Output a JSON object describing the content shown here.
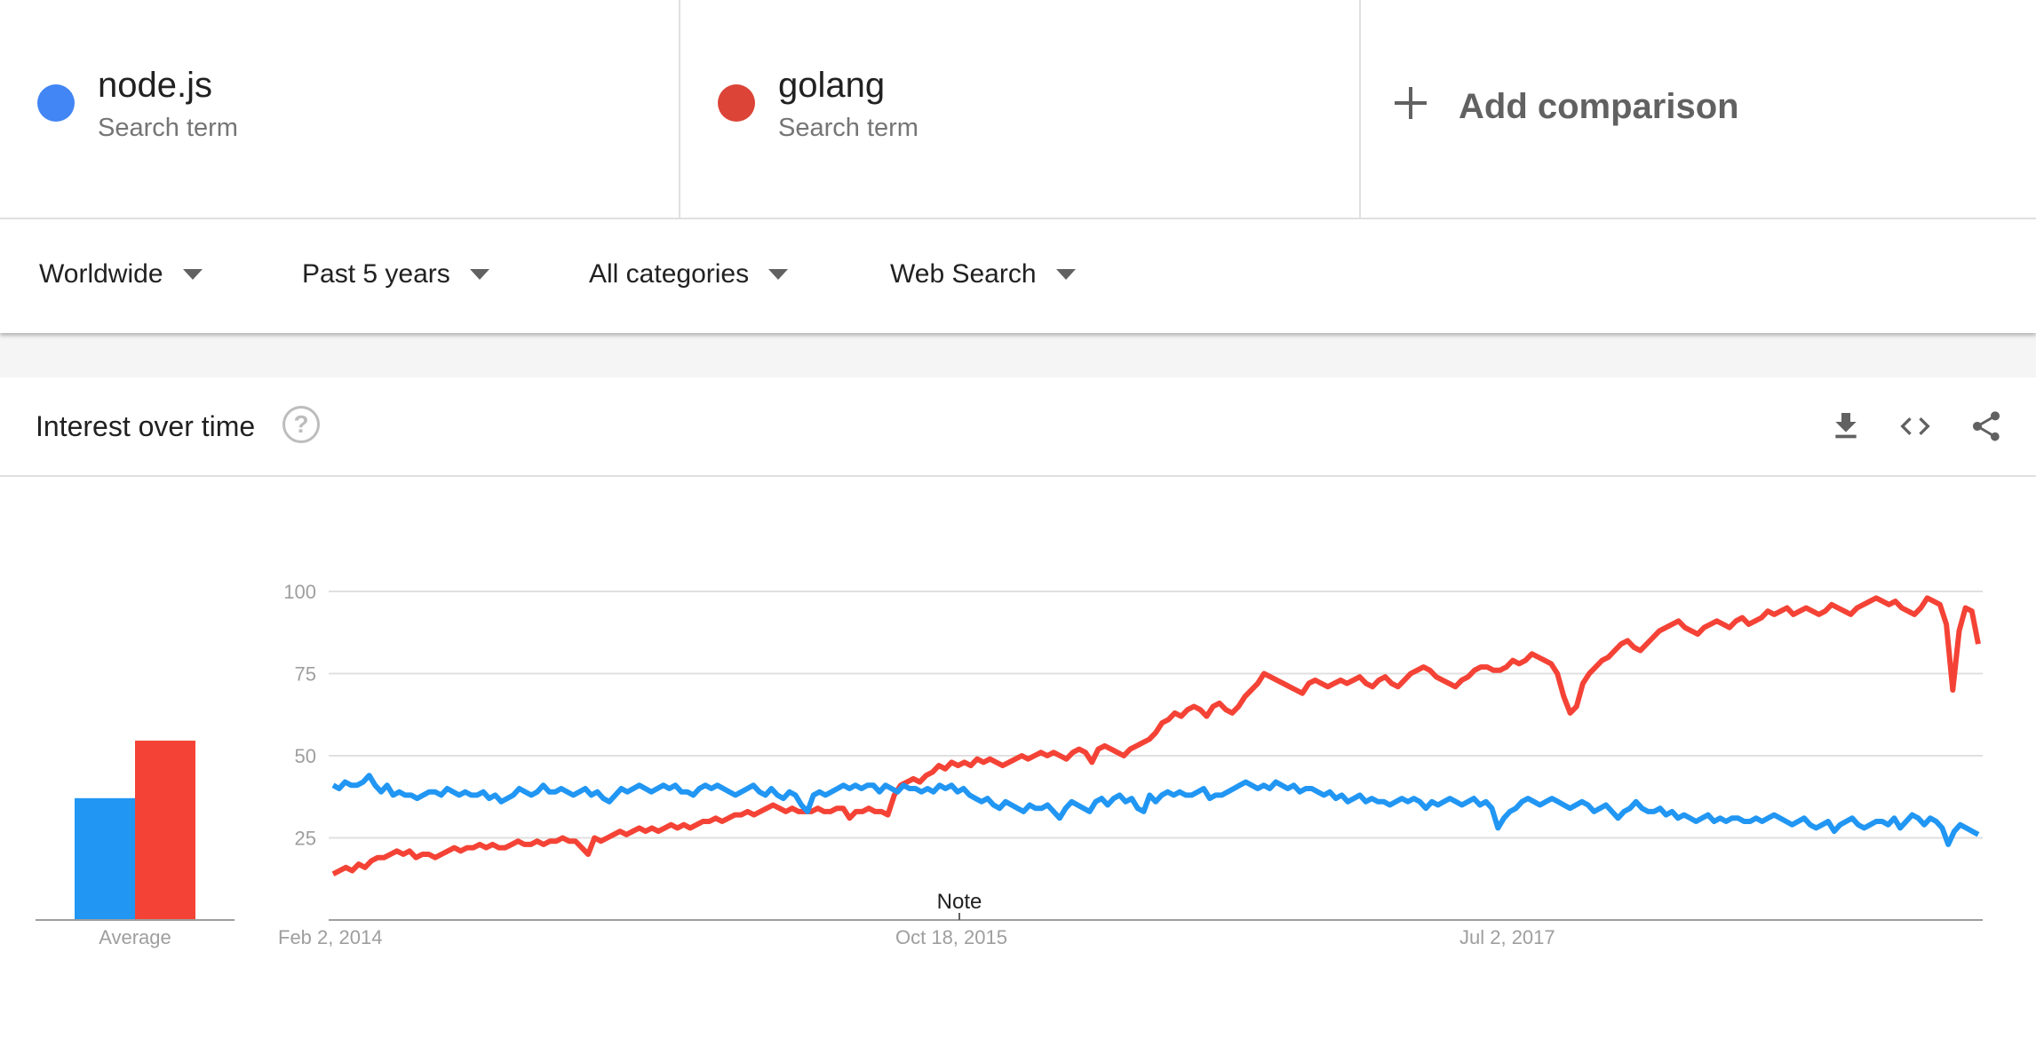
{
  "terms": [
    {
      "name": "node.js",
      "sub": "Search term",
      "color": "#4285f4"
    },
    {
      "name": "golang",
      "sub": "Search term",
      "color": "#db4437"
    }
  ],
  "add_comparison": "Add comparison",
  "filters": {
    "region": "Worldwide",
    "time": "Past 5 years",
    "category": "All categories",
    "search_type": "Web Search"
  },
  "card": {
    "title": "Interest over time",
    "icons": [
      "help-icon",
      "download-icon",
      "embed-icon",
      "share-icon"
    ]
  },
  "chart_data": {
    "type": "line",
    "y_ticks": [
      25,
      50,
      75,
      100
    ],
    "ylim": [
      0,
      100
    ],
    "x_labels": [
      "Feb 2, 2014",
      "Oct 18, 2015",
      "Jul 2, 2017"
    ],
    "note_label": "Note",
    "grid": true,
    "average_label": "Average",
    "averages": [
      {
        "series": "node.js",
        "value": 36,
        "color": "#2196f3"
      },
      {
        "series": "golang",
        "value": 53,
        "color": "#f44336"
      }
    ],
    "series": [
      {
        "name": "node.js",
        "color": "#2196f3",
        "values": [
          41,
          40,
          42,
          41,
          41,
          42,
          44,
          41,
          39,
          41,
          38,
          39,
          38,
          38,
          37,
          38,
          39,
          39,
          38,
          40,
          39,
          38,
          39,
          38,
          38,
          39,
          37,
          38,
          36,
          37,
          38,
          40,
          39,
          38,
          39,
          41,
          39,
          39,
          40,
          39,
          38,
          39,
          40,
          38,
          39,
          37,
          36,
          38,
          40,
          39,
          40,
          41,
          40,
          39,
          40,
          41,
          40,
          41,
          39,
          39,
          38,
          40,
          41,
          40,
          41,
          40,
          39,
          38,
          39,
          40,
          41,
          39,
          38,
          40,
          38,
          37,
          39,
          38,
          35,
          33,
          38,
          39,
          38,
          39,
          40,
          41,
          40,
          41,
          40,
          41,
          41,
          39,
          41,
          40,
          39,
          41,
          40,
          40,
          39,
          40,
          39,
          41,
          40,
          41,
          39,
          40,
          38,
          37,
          36,
          37,
          35,
          34,
          36,
          35,
          34,
          33,
          35,
          34,
          34,
          35,
          33,
          31,
          34,
          36,
          35,
          34,
          33,
          36,
          37,
          35,
          37,
          38,
          36,
          37,
          34,
          33,
          38,
          36,
          38,
          39,
          38,
          39,
          38,
          38,
          39,
          40,
          37,
          38,
          38,
          39,
          40,
          41,
          42,
          41,
          40,
          41,
          40,
          42,
          41,
          40,
          41,
          39,
          40,
          40,
          39,
          38,
          39,
          37,
          38,
          36,
          37,
          38,
          36,
          37,
          36,
          36,
          35,
          36,
          37,
          36,
          37,
          36,
          34,
          36,
          35,
          36,
          37,
          36,
          35,
          36,
          37,
          35,
          36,
          34,
          28,
          31,
          33,
          34,
          36,
          37,
          36,
          35,
          36,
          37,
          36,
          35,
          34,
          35,
          36,
          35,
          33,
          34,
          35,
          33,
          31,
          33,
          34,
          36,
          34,
          33,
          33,
          34,
          32,
          33,
          31,
          32,
          31,
          30,
          31,
          32,
          30,
          31,
          30,
          31,
          31,
          30,
          30,
          31,
          30,
          31,
          32,
          31,
          30,
          29,
          30,
          31,
          29,
          28,
          29,
          30,
          27,
          29,
          30,
          31,
          29,
          28,
          29,
          30,
          30,
          29,
          31,
          28,
          30,
          32,
          31,
          29,
          31,
          30,
          28,
          23,
          27,
          29,
          28,
          27,
          26
        ]
      },
      {
        "name": "golang",
        "color": "#f44336",
        "values": [
          14,
          15,
          16,
          15,
          17,
          16,
          18,
          19,
          19,
          20,
          21,
          20,
          21,
          19,
          20,
          20,
          19,
          20,
          21,
          22,
          21,
          22,
          22,
          23,
          22,
          23,
          22,
          22,
          23,
          24,
          23,
          23,
          24,
          23,
          24,
          24,
          25,
          24,
          24,
          22,
          20,
          25,
          24,
          25,
          26,
          27,
          26,
          27,
          28,
          27,
          28,
          27,
          28,
          29,
          28,
          29,
          28,
          29,
          30,
          30,
          31,
          30,
          31,
          32,
          32,
          33,
          32,
          33,
          34,
          35,
          34,
          33,
          34,
          33,
          33,
          33,
          34,
          33,
          33,
          34,
          34,
          31,
          33,
          33,
          34,
          33,
          33,
          32,
          38,
          41,
          42,
          43,
          42,
          44,
          45,
          47,
          46,
          48,
          47,
          48,
          47,
          49,
          48,
          49,
          48,
          47,
          48,
          49,
          50,
          49,
          50,
          51,
          50,
          51,
          50,
          49,
          51,
          52,
          51,
          48,
          52,
          53,
          52,
          51,
          50,
          52,
          53,
          54,
          55,
          57,
          60,
          61,
          63,
          62,
          64,
          65,
          64,
          62,
          65,
          66,
          64,
          63,
          65,
          68,
          70,
          72,
          75,
          74,
          73,
          72,
          71,
          70,
          69,
          72,
          73,
          72,
          71,
          72,
          73,
          72,
          73,
          74,
          72,
          71,
          73,
          74,
          72,
          71,
          73,
          75,
          76,
          77,
          76,
          74,
          73,
          72,
          71,
          73,
          74,
          76,
          77,
          77,
          76,
          76,
          77,
          79,
          78,
          79,
          81,
          80,
          79,
          78,
          75,
          68,
          63,
          65,
          72,
          75,
          77,
          79,
          80,
          82,
          84,
          85,
          83,
          82,
          84,
          86,
          88,
          89,
          90,
          91,
          89,
          88,
          87,
          89,
          90,
          91,
          90,
          89,
          91,
          92,
          90,
          91,
          92,
          94,
          93,
          94,
          95,
          93,
          94,
          95,
          94,
          93,
          94,
          96,
          95,
          94,
          93,
          95,
          96,
          97,
          98,
          97,
          96,
          97,
          95,
          94,
          93,
          95,
          98,
          97,
          96,
          90,
          70,
          88,
          95,
          94,
          84
        ]
      }
    ]
  }
}
